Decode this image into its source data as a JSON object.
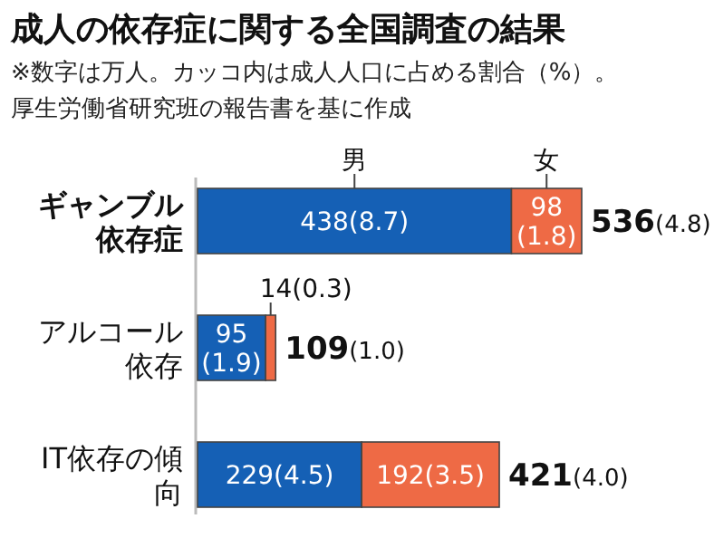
{
  "chart_data": {
    "type": "bar",
    "orientation": "horizontal",
    "stacked": true,
    "title": "成人の依存症に関する全国調査の結果",
    "subtitle": "※数字は万人。カッコ内は成人人口に占める割合（%）。",
    "annotations": [
      "厚生労働省研究班の報告書を基に作成"
    ],
    "categories": [
      "ギャンブル依存症",
      "アルコール依存",
      "IT依存の傾向"
    ],
    "series": [
      {
        "name": "男",
        "color": "#1560b5",
        "values": [
          438,
          95,
          229
        ],
        "value_labels": [
          "438(8.7)",
          "95(1.9)",
          "229(4.5)"
        ]
      },
      {
        "name": "女",
        "color": "#ee6a45",
        "values": [
          98,
          14,
          192
        ],
        "value_labels": [
          "98(1.8)",
          "14(0.3)",
          "192(3.5)"
        ]
      }
    ],
    "totals": [
      "536(4.8)",
      "109(1.0)",
      "421(4.0)"
    ],
    "legend": "top"
  }
}
